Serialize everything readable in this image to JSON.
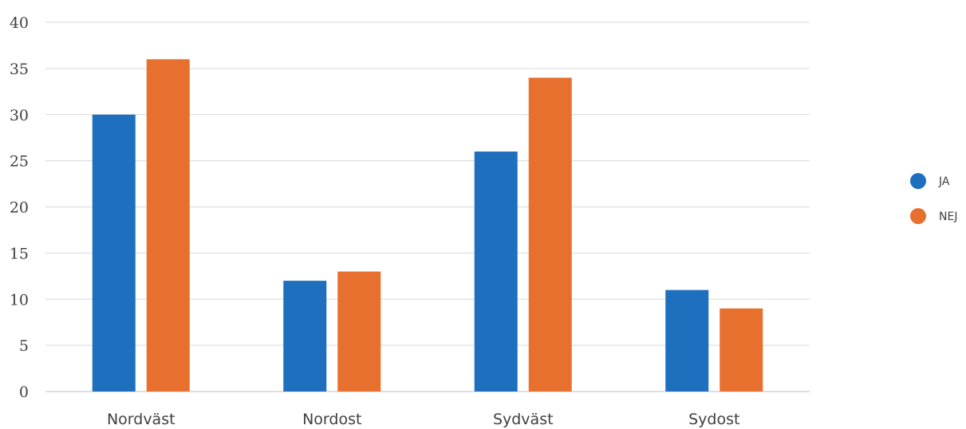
{
  "chart_data": {
    "type": "bar",
    "categories": [
      "Nordväst",
      "Nordost",
      "Sydväst",
      "Sydost"
    ],
    "series": [
      {
        "name": "JA",
        "values": [
          30,
          12,
          26,
          11
        ],
        "color": "#1f6fbf"
      },
      {
        "name": "NEJ",
        "values": [
          36,
          13,
          34,
          9
        ],
        "color": "#e8702e"
      }
    ],
    "ylim": [
      0,
      40
    ],
    "yticks": [
      0,
      5,
      10,
      15,
      20,
      25,
      30,
      35,
      40
    ],
    "grid": true,
    "legend_position": "right",
    "title": "",
    "xlabel": "",
    "ylabel": ""
  }
}
